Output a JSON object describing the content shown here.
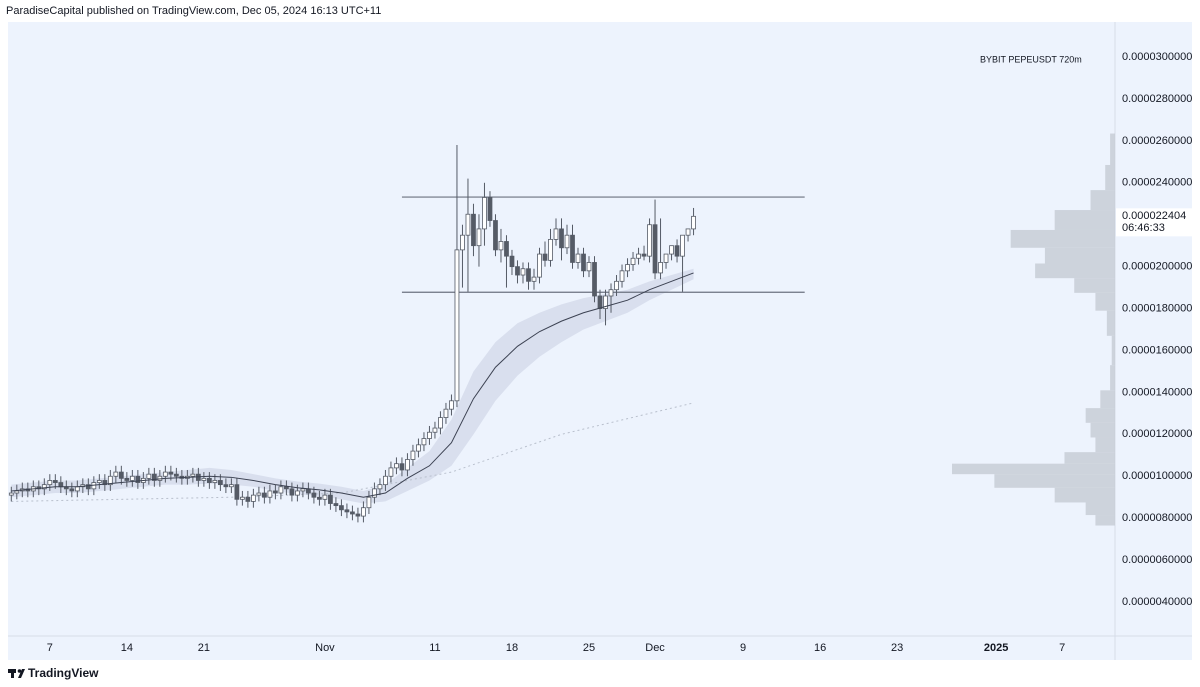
{
  "header": "ParadiseCapital published on TradingView.com, Dec 05, 2024 16:13 UTC+11",
  "footer": "TradingView",
  "chart_data": {
    "type": "candlestick",
    "instrument": "BYBIT  PEPEUSDT 720m",
    "price_label": "0.000022404",
    "countdown": "06:46:33",
    "xlim": [
      3.2,
      103.8
    ],
    "ylim": [
      2.38e-06,
      3.1766e-05
    ],
    "xticks": [
      7,
      14,
      21,
      {
        "value": 32,
        "label": "Nov"
      },
      {
        "value": 42,
        "label": "11"
      },
      {
        "value": 49,
        "label": "18"
      },
      {
        "value": 56,
        "label": "25"
      },
      {
        "value": 62,
        "label": "Dec"
      },
      {
        "value": 70,
        "label": "9"
      },
      {
        "value": 77,
        "label": "16"
      },
      {
        "value": 84,
        "label": "23"
      },
      {
        "value": 93,
        "label": "2025"
      },
      {
        "value": 99,
        "label": "7"
      }
    ],
    "yticks": [
      {
        "value": 4e-06,
        "label": "0.0000040000"
      },
      {
        "value": 6e-06,
        "label": "0.0000060000"
      },
      {
        "value": 8e-06,
        "label": "0.0000080000"
      },
      {
        "value": 1e-05,
        "label": "0.0000100000"
      },
      {
        "value": 1.2e-05,
        "label": "0.0000120000"
      },
      {
        "value": 1.4e-05,
        "label": "0.0000140000"
      },
      {
        "value": 1.6e-05,
        "label": "0.0000160000"
      },
      {
        "value": 1.8e-05,
        "label": "0.0000180000"
      },
      {
        "value": 2e-05,
        "label": "0.0000200000"
      },
      {
        "value": 2.2e-05,
        "label": "0.0000220000"
      },
      {
        "value": 2.4e-05,
        "label": "0.0000240000"
      },
      {
        "value": 2.6e-05,
        "label": "0.0000260000"
      },
      {
        "value": 2.8e-05,
        "label": "0.0000280000"
      },
      {
        "value": 3e-05,
        "label": "0.0000300000"
      }
    ],
    "x": [
      3.5,
      4,
      4.5,
      5,
      5.5,
      6,
      6.5,
      7,
      7.5,
      8,
      8.5,
      9,
      9.5,
      10,
      10.5,
      11,
      11.5,
      12,
      12.5,
      13,
      13.5,
      14,
      14.5,
      15,
      15.5,
      16,
      16.5,
      17,
      17.5,
      18,
      18.5,
      19,
      19.5,
      20,
      20.5,
      21,
      21.5,
      22,
      22.5,
      23,
      23.5,
      24,
      24.5,
      25,
      25.5,
      26,
      26.5,
      27,
      27.5,
      28,
      28.5,
      29,
      29.5,
      30,
      30.5,
      31,
      31.5,
      32,
      32.5,
      33,
      33.5,
      34,
      34.5,
      35,
      35.5,
      36,
      36.5,
      37,
      37.5,
      38,
      38.5,
      39,
      39.5,
      40,
      40.5,
      41,
      41.5,
      42,
      42.5,
      43,
      43.5,
      44,
      44.5,
      45,
      45.5,
      46,
      46.5,
      47,
      47.5,
      48,
      48.5,
      49,
      49.5,
      50,
      50.5,
      51,
      51.5,
      52,
      52.5,
      53,
      53.5,
      54,
      54.5,
      55,
      55.5,
      56,
      56.5,
      57,
      57.5,
      58,
      58.5,
      59,
      59.5,
      60,
      60.5,
      61,
      61.5,
      62,
      62.5,
      63,
      63.5,
      64,
      64.5,
      65,
      65.5
    ],
    "open": [
      9.1e-06,
      9.2e-06,
      9.3e-06,
      9.4e-06,
      9.3e-06,
      9.5e-06,
      9.4e-06,
      9.6e-06,
      9.8e-06,
      9.7e-06,
      9.5e-06,
      9.4e-06,
      9.3e-06,
      9.5e-06,
      9.6e-06,
      9.4e-06,
      9.7e-06,
      9.8e-06,
      9.6e-06,
      1e-05,
      1.02e-05,
      9.9e-06,
      9.8e-06,
      1e-05,
      9.7e-06,
      9.9e-06,
      1.01e-05,
      9.8e-06,
      1e-05,
      1.02e-05,
      1.01e-05,
      1e-05,
      9.9e-06,
      1e-05,
      1.01e-05,
      9.8e-06,
      9.9e-06,
      9.7e-06,
      9.8e-06,
      9.6e-06,
      9.5e-06,
      9.6e-06,
      8.9e-06,
      9e-06,
      8.8e-06,
      9.1e-06,
      9.2e-06,
      9e-06,
      9.3e-06,
      9.2e-06,
      9.5e-06,
      9.4e-06,
      9.1e-06,
      9.3e-06,
      9.4e-06,
      9.2e-06,
      9e-06,
      8.9e-06,
      9.1e-06,
      8.7e-06,
      8.6e-06,
      8.4e-06,
      8.3e-06,
      8.2e-06,
      8.1e-06,
      8.5e-06,
      9e-06,
      9.4e-06,
      9.6e-06,
      1e-05,
      1.04e-05,
      1.06e-05,
      1.03e-05,
      1.08e-05,
      1.12e-05,
      1.15e-05,
      1.18e-05,
      1.21e-05,
      1.23e-05,
      1.28e-05,
      1.32e-05,
      1.36e-05,
      2.08e-05,
      2.15e-05,
      2.25e-05,
      2.1e-05,
      2.18e-05,
      2.33e-05,
      2.22e-05,
      2.08e-05,
      2.12e-05,
      2.05e-05,
      2e-05,
      1.96e-05,
      1.99e-05,
      1.93e-05,
      1.95e-05,
      2.06e-05,
      2.03e-05,
      2.13e-05,
      2.18e-05,
      2.09e-05,
      2.15e-05,
      2.02e-05,
      2.06e-05,
      1.98e-05,
      2.02e-05,
      1.86e-05,
      1.8e-05,
      1.86e-05,
      1.89e-05,
      1.93e-05,
      1.98e-05,
      2.01e-05,
      2.04e-05,
      2.06e-05,
      2.05e-05,
      2.2e-05,
      1.97e-05,
      2.02e-05,
      2.06e-05,
      2.1e-05,
      2.05e-05,
      2.15e-05,
      2.18e-05
    ],
    "high": [
      9.5e-06,
      9.6e-06,
      9.7e-06,
      9.7e-06,
      9.8e-06,
      9.8e-06,
      9.9e-06,
      1.01e-05,
      1.01e-05,
      1e-05,
      9.8e-06,
      9.7e-06,
      9.8e-06,
      9.9e-06,
      9.9e-06,
      1e-05,
      1.01e-05,
      1.01e-05,
      1.03e-05,
      1.05e-05,
      1.05e-05,
      1.02e-05,
      1.03e-05,
      1.03e-05,
      1.02e-05,
      1.04e-05,
      1.04e-05,
      1.03e-05,
      1.05e-05,
      1.05e-05,
      1.04e-05,
      1.03e-05,
      1.03e-05,
      1.04e-05,
      1.04e-05,
      1.02e-05,
      1.02e-05,
      1.01e-05,
      1.01e-05,
      9.9e-06,
      9.9e-06,
      9.9e-06,
      9.3e-06,
      9.3e-06,
      9.4e-06,
      9.5e-06,
      9.5e-06,
      9.6e-06,
      9.6e-06,
      9.8e-06,
      9.8e-06,
      9.7e-06,
      9.6e-06,
      9.7e-06,
      9.7e-06,
      9.5e-06,
      9.3e-06,
      9.4e-06,
      9.4e-06,
      9e-06,
      8.9e-06,
      8.7e-06,
      8.6e-06,
      8.5e-06,
      8.8e-06,
      9.3e-06,
      9.7e-06,
      9.9e-06,
      1.03e-05,
      1.07e-05,
      1.09e-05,
      1.09e-05,
      1.11e-05,
      1.15e-05,
      1.18e-05,
      1.21e-05,
      1.24e-05,
      1.26e-05,
      1.31e-05,
      1.35e-05,
      1.39e-05,
      2.58e-05,
      2.2e-05,
      2.42e-05,
      2.3e-05,
      2.25e-05,
      2.4e-05,
      2.36e-05,
      2.25e-05,
      2.18e-05,
      2.15e-05,
      2.08e-05,
      2.03e-05,
      2.02e-05,
      2.02e-05,
      1.99e-05,
      2.09e-05,
      2.12e-05,
      2.18e-05,
      2.23e-05,
      2.23e-05,
      2.2e-05,
      2.2e-05,
      2.09e-05,
      2.09e-05,
      2.05e-05,
      2.05e-05,
      1.89e-05,
      1.89e-05,
      1.92e-05,
      1.96e-05,
      2.01e-05,
      2.04e-05,
      2.07e-05,
      2.09e-05,
      2.1e-05,
      2.23e-05,
      2.32e-05,
      2.23e-05,
      2.05e-05,
      2.09e-05,
      2.13e-05,
      2.13e-05,
      2.18e-05,
      2.28e-05
    ],
    "low": [
      8.8e-06,
      8.9e-06,
      9e-06,
      9e-06,
      9e-06,
      9.1e-06,
      9.1e-06,
      9.3e-06,
      9.4e-06,
      9.2e-06,
      9.1e-06,
      9e-06,
      9e-06,
      9.2e-06,
      9.1e-06,
      9.1e-06,
      9.4e-06,
      9.3e-06,
      9.3e-06,
      9.7e-06,
      9.6e-06,
      9.5e-06,
      9.5e-06,
      9.4e-06,
      9.4e-06,
      9.6e-06,
      9.5e-06,
      9.5e-06,
      9.7e-06,
      9.8e-06,
      9.7e-06,
      9.6e-06,
      9.6e-06,
      9.7e-06,
      9.5e-06,
      9.5e-06,
      9.4e-06,
      9.4e-06,
      9.3e-06,
      9.2e-06,
      9.2e-06,
      8.6e-06,
      8.6e-06,
      8.5e-06,
      8.5e-06,
      8.8e-06,
      8.7e-06,
      8.7e-06,
      8.9e-06,
      8.9e-06,
      9.1e-06,
      8.8e-06,
      8.8e-06,
      9e-06,
      8.9e-06,
      8.7e-06,
      8.6e-06,
      8.6e-06,
      8.4e-06,
      8.3e-06,
      8.1e-06,
      8e-06,
      7.9e-06,
      7.8e-06,
      7.8e-06,
      8.2e-06,
      8.7e-06,
      9.1e-06,
      9.3e-06,
      9.7e-06,
      1.01e-05,
      1e-05,
      1e-05,
      1.05e-05,
      1.09e-05,
      1.12e-05,
      1.15e-05,
      1.18e-05,
      1.2e-05,
      1.25e-05,
      1.29e-05,
      1.33e-05,
      1.9e-05,
      1.88e-05,
      2.05e-05,
      2e-05,
      2.1e-05,
      2.19e-05,
      2.05e-05,
      2.02e-05,
      1.9e-05,
      1.96e-05,
      1.92e-05,
      1.92e-05,
      1.89e-05,
      1.89e-05,
      1.92e-05,
      2e-05,
      2e-05,
      2.1e-05,
      2.03e-05,
      2.06e-05,
      1.99e-05,
      1.99e-05,
      1.95e-05,
      1.95e-05,
      1.83e-05,
      1.75e-05,
      1.72e-05,
      1.78e-05,
      1.86e-05,
      1.9e-05,
      1.95e-05,
      1.98e-05,
      2.01e-05,
      2.03e-05,
      2.02e-05,
      1.94e-05,
      1.94e-05,
      1.99e-05,
      2.03e-05,
      2.02e-05,
      1.88e-05,
      2.12e-05,
      2.15e-05
    ],
    "close": [
      9.2e-06,
      9.3e-06,
      9.4e-06,
      9.3e-06,
      9.5e-06,
      9.4e-06,
      9.6e-06,
      9.8e-06,
      9.7e-06,
      9.5e-06,
      9.4e-06,
      9.3e-06,
      9.5e-06,
      9.6e-06,
      9.4e-06,
      9.7e-06,
      9.8e-06,
      9.6e-06,
      1e-05,
      1.02e-05,
      9.9e-06,
      9.8e-06,
      1e-05,
      9.7e-06,
      9.9e-06,
      1.01e-05,
      9.8e-06,
      1e-05,
      1.02e-05,
      1.01e-05,
      1e-05,
      9.9e-06,
      1e-05,
      1.01e-05,
      9.8e-06,
      9.9e-06,
      9.7e-06,
      9.8e-06,
      9.6e-06,
      9.5e-06,
      9.6e-06,
      8.9e-06,
      9e-06,
      8.8e-06,
      9.1e-06,
      9.2e-06,
      9e-06,
      9.3e-06,
      9.2e-06,
      9.5e-06,
      9.4e-06,
      9.1e-06,
      9.3e-06,
      9.4e-06,
      9.2e-06,
      9e-06,
      8.9e-06,
      9.1e-06,
      8.7e-06,
      8.6e-06,
      8.4e-06,
      8.3e-06,
      8.2e-06,
      8.1e-06,
      8.5e-06,
      9e-06,
      9.4e-06,
      9.6e-06,
      1e-05,
      1.04e-05,
      1.06e-05,
      1.03e-05,
      1.08e-05,
      1.12e-05,
      1.15e-05,
      1.18e-05,
      1.21e-05,
      1.23e-05,
      1.28e-05,
      1.32e-05,
      1.36e-05,
      2.08e-05,
      2.15e-05,
      2.25e-05,
      2.1e-05,
      2.18e-05,
      2.33e-05,
      2.22e-05,
      2.08e-05,
      2.12e-05,
      2.05e-05,
      2e-05,
      1.96e-05,
      1.99e-05,
      1.93e-05,
      1.95e-05,
      2.06e-05,
      2.03e-05,
      2.13e-05,
      2.18e-05,
      2.09e-05,
      2.15e-05,
      2.02e-05,
      2.06e-05,
      1.98e-05,
      2.02e-05,
      1.86e-05,
      1.8e-05,
      1.86e-05,
      1.89e-05,
      1.93e-05,
      1.98e-05,
      2.01e-05,
      2.04e-05,
      2.06e-05,
      2.05e-05,
      2.2e-05,
      1.97e-05,
      2.02e-05,
      2.06e-05,
      2.1e-05,
      2.05e-05,
      2.15e-05,
      2.18e-05,
      2.24e-05
    ],
    "up_color": "#ffffff",
    "down_color": "#555b66",
    "wick_color": "#555b66",
    "ma": {
      "color": "#3c4252",
      "band_color": "#d3daea",
      "x": [
        3.5,
        5.5,
        7.5,
        9.5,
        11.5,
        13.5,
        15.5,
        17.5,
        19.5,
        21.5,
        23.5,
        25.5,
        27.5,
        29.5,
        31.5,
        33.5,
        35.5,
        37.5,
        39.5,
        41.5,
        43.5,
        45.5,
        47.5,
        49.5,
        51.5,
        53.5,
        55.5,
        57.5,
        59.5,
        61.5,
        63.5,
        65.5
      ],
      "values": [
        9.3e-06,
        9.4e-06,
        9.5e-06,
        9.5e-06,
        9.6e-06,
        9.7e-06,
        9.8e-06,
        9.9e-06,
        9.95e-06,
        1e-05,
        9.95e-06,
        9.8e-06,
        9.6e-06,
        9.45e-06,
        9.35e-06,
        9.2e-06,
        9e-06,
        9.2e-06,
        9.9e-06,
        1.05e-05,
        1.16e-05,
        1.37e-05,
        1.52e-05,
        1.62e-05,
        1.69e-05,
        1.74e-05,
        1.78e-05,
        1.81e-05,
        1.84e-05,
        1.89e-05,
        1.93e-05,
        1.97e-05
      ],
      "upper": [
        9.6e-06,
        9.7e-06,
        9.8e-06,
        9.8e-06,
        9.9e-06,
        1e-05,
        1.01e-05,
        1.02e-05,
        1.03e-05,
        1.04e-05,
        1.03e-05,
        1.01e-05,
        9.9e-06,
        9.75e-06,
        9.65e-06,
        9.5e-06,
        9.3e-06,
        9.6e-06,
        1.04e-05,
        1.12e-05,
        1.27e-05,
        1.5e-05,
        1.64e-05,
        1.73e-05,
        1.78e-05,
        1.82e-05,
        1.85e-05,
        1.87e-05,
        1.89e-05,
        1.93e-05,
        1.96e-05,
        1.99e-05
      ],
      "lower": [
        9e-06,
        9.1e-06,
        9.2e-06,
        9.2e-06,
        9.3e-06,
        9.4e-06,
        9.5e-06,
        9.6e-06,
        9.6e-06,
        9.65e-06,
        9.6e-06,
        9.5e-06,
        9.3e-06,
        9.15e-06,
        9.05e-06,
        8.9e-06,
        8.7e-06,
        8.8e-06,
        9.3e-06,
        9.8e-06,
        1.05e-05,
        1.2e-05,
        1.36e-05,
        1.48e-05,
        1.57e-05,
        1.64e-05,
        1.7e-05,
        1.74e-05,
        1.78e-05,
        1.84e-05,
        1.89e-05,
        1.94e-05
      ]
    },
    "ma_long": {
      "color": "#b8bfcc",
      "x": [
        3.5,
        13.5,
        23.5,
        33.5,
        43.5,
        53.5,
        65.5
      ],
      "values": [
        8.8e-06,
        8.9e-06,
        9e-06,
        9.2e-06,
        1.02e-05,
        1.2e-05,
        1.35e-05
      ]
    },
    "levels": [
      2.332e-05,
      1.878e-05
    ],
    "level_from": 39,
    "level_to": 75.6,
    "level_color": "#6b7280",
    "volume_profile": {
      "color": "#c7ccd6",
      "prices": [
        2.56e-05,
        2.41e-05,
        2.32e-05,
        2.22e-05,
        2.13e-05,
        2.05e-05,
        1.98e-05,
        1.91e-05,
        1.84e-05,
        1.74e-05,
        1.6e-05,
        1.46e-05,
        1.36e-05,
        1.29e-05,
        1.22e-05,
        1.15e-05,
        1.08e-05,
        1.04e-05,
        9.8e-06,
        9.1e-06,
        8.4e-06,
        7.9e-06
      ],
      "volumes": [
        3,
        6,
        15,
        37,
        64,
        43,
        49,
        25,
        12,
        5,
        2,
        3,
        9,
        18,
        15,
        12,
        31,
        100,
        74,
        37,
        18,
        12
      ]
    }
  }
}
